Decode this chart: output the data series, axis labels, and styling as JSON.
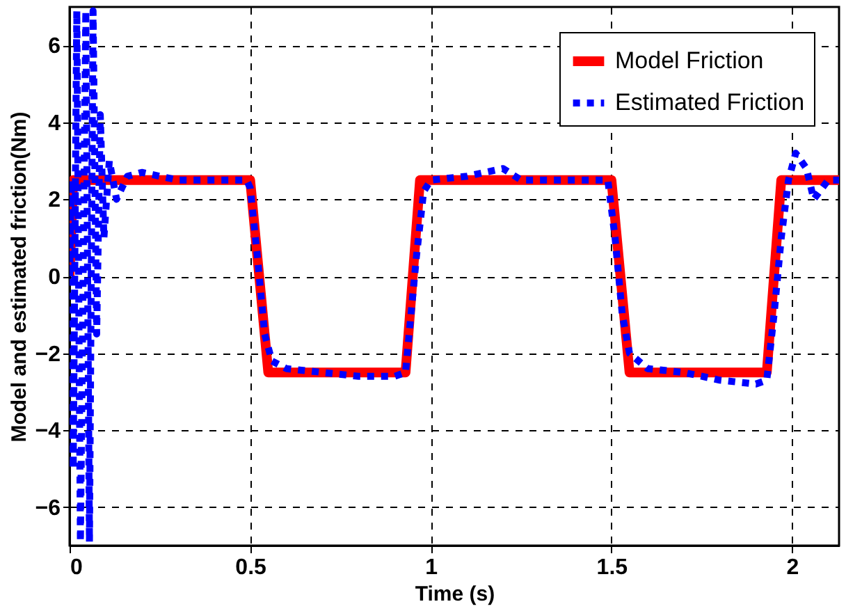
{
  "chart_data": {
    "type": "line",
    "xlabel": "Time (s)",
    "ylabel": "Model and estimated friction(Nm)",
    "xlim": [
      0,
      2.13
    ],
    "xticks": [
      0,
      0.5,
      1,
      1.5,
      2
    ],
    "ylim": [
      -7,
      7
    ],
    "yticks": [
      -6,
      -4,
      -2,
      0,
      2,
      4,
      6
    ],
    "grid": true,
    "legend": "top right",
    "series": [
      {
        "name": "Model Friction",
        "color": "#ff0000",
        "line_style": "solid",
        "x": [
          0,
          0.01,
          0.5,
          0.55,
          0.93,
          0.97,
          1.5,
          1.55,
          1.93,
          1.97,
          2.13
        ],
        "values": [
          0,
          2.5,
          2.5,
          -2.5,
          -2.5,
          2.5,
          2.5,
          -2.5,
          -2.5,
          2.5,
          2.5
        ]
      },
      {
        "name": "Estimated Friction",
        "color": "#0000ff",
        "line_style": "dotted",
        "x": [
          0,
          0.005,
          0.01,
          0.02,
          0.03,
          0.045,
          0.055,
          0.065,
          0.075,
          0.085,
          0.095,
          0.11,
          0.13,
          0.16,
          0.2,
          0.3,
          0.4,
          0.49,
          0.5,
          0.52,
          0.54,
          0.56,
          0.6,
          0.7,
          0.8,
          0.9,
          0.93,
          0.94,
          0.96,
          0.98,
          1.0,
          1.1,
          1.2,
          1.25,
          1.4,
          1.49,
          1.51,
          1.53,
          1.55,
          1.6,
          1.7,
          1.8,
          1.9,
          1.93,
          1.95,
          1.97,
          1.99,
          2.01,
          2.04,
          2.06,
          2.1,
          2.13
        ],
        "values": [
          0,
          2.5,
          -5,
          6.9,
          -6.9,
          6.9,
          -6.9,
          6.9,
          -1.5,
          4.2,
          1.0,
          3.0,
          2.0,
          2.6,
          2.7,
          2.5,
          2.5,
          2.5,
          2.3,
          0.5,
          -1.5,
          -2.2,
          -2.4,
          -2.5,
          -2.6,
          -2.6,
          -2.5,
          -1.5,
          0.5,
          2.2,
          2.5,
          2.6,
          2.8,
          2.5,
          2.5,
          2.5,
          1.0,
          -1.0,
          -2.0,
          -2.4,
          -2.5,
          -2.7,
          -2.8,
          -2.7,
          -1.0,
          1.0,
          2.5,
          3.2,
          2.8,
          2.0,
          2.5,
          2.5
        ]
      }
    ]
  }
}
